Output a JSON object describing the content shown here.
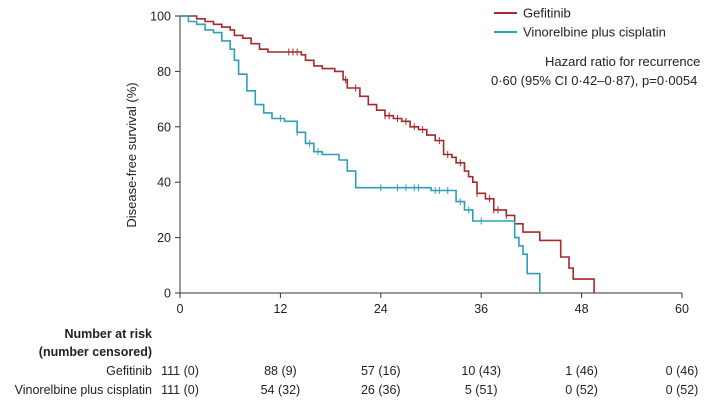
{
  "chart_data": {
    "type": "line",
    "subtype": "kaplan-meier",
    "ylabel": "Disease-free survival (%)",
    "xlabel": "",
    "xlim": [
      0,
      60
    ],
    "ylim": [
      0,
      100
    ],
    "x_ticks": [
      0,
      12,
      24,
      36,
      48,
      60
    ],
    "y_ticks": [
      0,
      20,
      40,
      60,
      80,
      100
    ],
    "legend_position": "top-right",
    "annotation": {
      "line1": "Hazard ratio for recurrence",
      "line2": "0·60 (95% CI 0·42–0·87), p=0·0054"
    },
    "series": [
      {
        "name": "Gefitinib",
        "color": "#a52a2a",
        "points": [
          [
            0,
            100
          ],
          [
            1,
            100
          ],
          [
            2,
            99
          ],
          [
            3,
            98
          ],
          [
            4,
            97
          ],
          [
            5,
            96
          ],
          [
            6,
            95
          ],
          [
            6.5,
            93
          ],
          [
            7.5,
            92
          ],
          [
            8.5,
            90
          ],
          [
            9.5,
            88
          ],
          [
            10.5,
            87
          ],
          [
            14.5,
            86
          ],
          [
            15,
            84
          ],
          [
            16,
            82
          ],
          [
            17,
            81
          ],
          [
            18.5,
            80
          ],
          [
            19.5,
            77
          ],
          [
            20,
            74
          ],
          [
            21.5,
            71
          ],
          [
            22.5,
            68
          ],
          [
            23.5,
            66
          ],
          [
            24.5,
            64
          ],
          [
            25.5,
            63
          ],
          [
            26.5,
            62
          ],
          [
            27.5,
            60
          ],
          [
            28.5,
            59
          ],
          [
            29.5,
            57
          ],
          [
            30.5,
            55
          ],
          [
            31.5,
            50
          ],
          [
            32.5,
            49
          ],
          [
            33,
            47
          ],
          [
            34,
            44
          ],
          [
            34.5,
            42
          ],
          [
            35,
            40
          ],
          [
            35.5,
            36
          ],
          [
            36.5,
            34
          ],
          [
            37.5,
            30
          ],
          [
            39,
            28
          ],
          [
            40,
            25
          ],
          [
            41,
            22
          ],
          [
            43,
            19
          ],
          [
            45,
            19
          ],
          [
            45.5,
            13
          ],
          [
            46.5,
            9
          ],
          [
            47,
            5
          ],
          [
            49.5,
            5
          ],
          [
            49.5,
            0
          ]
        ],
        "censor_x": [
          13,
          13.5,
          14,
          19.8,
          21,
          24.5,
          25,
          26,
          27,
          28,
          29,
          31,
          32,
          33.5,
          35.5,
          37,
          37.5,
          38,
          39,
          40
        ]
      },
      {
        "name": "Vinorelbine plus cisplatin",
        "color": "#2e9fb5",
        "points": [
          [
            0,
            100
          ],
          [
            1,
            98
          ],
          [
            2,
            97
          ],
          [
            3,
            95
          ],
          [
            4,
            94
          ],
          [
            5,
            91
          ],
          [
            6,
            88
          ],
          [
            6.5,
            84
          ],
          [
            7,
            79
          ],
          [
            8,
            73
          ],
          [
            9,
            68
          ],
          [
            10,
            65
          ],
          [
            11,
            63
          ],
          [
            12.5,
            62
          ],
          [
            14,
            58
          ],
          [
            15,
            54
          ],
          [
            16,
            51
          ],
          [
            17,
            50
          ],
          [
            19,
            48
          ],
          [
            20,
            44
          ],
          [
            21,
            38
          ],
          [
            27,
            38
          ],
          [
            30,
            37
          ],
          [
            33,
            33
          ],
          [
            34,
            30
          ],
          [
            35,
            26
          ],
          [
            36,
            26
          ],
          [
            40,
            20
          ],
          [
            40.5,
            17
          ],
          [
            41,
            14
          ],
          [
            41.5,
            7
          ],
          [
            43,
            7
          ],
          [
            43,
            0
          ]
        ],
        "censor_x": [
          12,
          14,
          15.5,
          16.5,
          24,
          26,
          27,
          28,
          28.5,
          30.5,
          31,
          32,
          33.5,
          34.5,
          36
        ]
      }
    ]
  },
  "risk_table": {
    "heading_line1": "Number at risk",
    "heading_line2": "(number censored)",
    "rows": [
      {
        "label": "Gefitinib",
        "values": [
          "111 (0)",
          "88 (9)",
          "57 (16)",
          "10 (43)",
          "1 (46)",
          "0 (46)"
        ]
      },
      {
        "label": "Vinorelbine plus cisplatin",
        "values": [
          "111 (0)",
          "54 (32)",
          "26 (36)",
          "5 (51)",
          "0 (52)",
          "0 (52)"
        ]
      }
    ]
  }
}
